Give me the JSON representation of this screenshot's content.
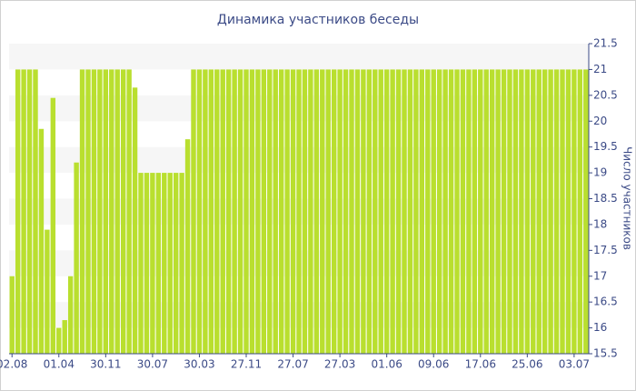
{
  "chart_data": {
    "type": "bar",
    "title": "Динамика участников беседы",
    "y_label": "Число участников",
    "categories": [
      "02.08",
      null,
      null,
      null,
      null,
      null,
      null,
      null,
      "01.04",
      null,
      null,
      null,
      null,
      null,
      null,
      null,
      "30.11",
      null,
      null,
      null,
      null,
      null,
      null,
      null,
      "30.07",
      null,
      null,
      null,
      null,
      null,
      null,
      null,
      "30.03",
      null,
      null,
      null,
      null,
      null,
      null,
      null,
      "27.11",
      null,
      null,
      null,
      null,
      null,
      null,
      null,
      "27.07",
      null,
      null,
      null,
      null,
      null,
      null,
      null,
      "27.03",
      null,
      null,
      null,
      null,
      null,
      null,
      null,
      "01.06",
      null,
      null,
      null,
      null,
      null,
      null,
      null,
      "09.06",
      null,
      null,
      null,
      null,
      null,
      null,
      null,
      "17.06",
      null,
      null,
      null,
      null,
      null,
      null,
      null,
      "25.06",
      null,
      null,
      null,
      null,
      null,
      null,
      null,
      "03.07",
      null,
      null
    ],
    "values": [
      17,
      21,
      21,
      21,
      21,
      19.85,
      17.9,
      20.45,
      16,
      16.15,
      17,
      19.2,
      21,
      21,
      21,
      21,
      21,
      21,
      21,
      21,
      21,
      20.65,
      19,
      19,
      19,
      19,
      19,
      19,
      19,
      19,
      19.65,
      21,
      21,
      21,
      21,
      21,
      21,
      21,
      21,
      21,
      21,
      21,
      21,
      21,
      21,
      21,
      21,
      21,
      21,
      21,
      21,
      21,
      21,
      21,
      21,
      21,
      21,
      21,
      21,
      21,
      21,
      21,
      21,
      21,
      21,
      21,
      21,
      21,
      21,
      21,
      21,
      21,
      21,
      21,
      21,
      21,
      21,
      21,
      21,
      21,
      21,
      21,
      21,
      21,
      21,
      21,
      21,
      21,
      21,
      21,
      21,
      21,
      21,
      21,
      21,
      21,
      21,
      21,
      21
    ],
    "color": "#b9df2f",
    "ylim": [
      15.5,
      21.5
    ],
    "yticks": [
      15.5,
      16,
      16.5,
      17,
      17.5,
      18,
      18.5,
      19,
      19.5,
      20,
      20.5,
      21,
      21.5
    ],
    "y_axis_side": "right",
    "grid": true
  }
}
